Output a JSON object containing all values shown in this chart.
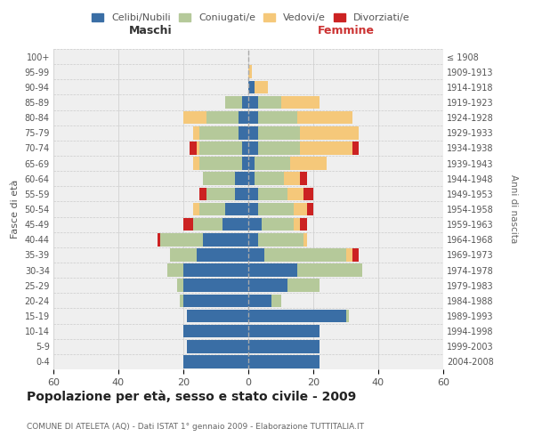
{
  "age_groups": [
    "0-4",
    "5-9",
    "10-14",
    "15-19",
    "20-24",
    "25-29",
    "30-34",
    "35-39",
    "40-44",
    "45-49",
    "50-54",
    "55-59",
    "60-64",
    "65-69",
    "70-74",
    "75-79",
    "80-84",
    "85-89",
    "90-94",
    "95-99",
    "100+"
  ],
  "birth_years": [
    "2004-2008",
    "1999-2003",
    "1994-1998",
    "1989-1993",
    "1984-1988",
    "1979-1983",
    "1974-1978",
    "1969-1973",
    "1964-1968",
    "1959-1963",
    "1954-1958",
    "1949-1953",
    "1944-1948",
    "1939-1943",
    "1934-1938",
    "1929-1933",
    "1924-1928",
    "1919-1923",
    "1914-1918",
    "1909-1913",
    "≤ 1908"
  ],
  "colors": {
    "celibi": "#3a6ea5",
    "coniugati": "#b5c99a",
    "vedovi": "#f5c87a",
    "divorziati": "#cc2222"
  },
  "males": {
    "celibi": [
      20,
      19,
      20,
      19,
      20,
      20,
      20,
      16,
      14,
      8,
      7,
      4,
      4,
      2,
      2,
      3,
      3,
      2,
      0,
      0,
      0
    ],
    "coniugati": [
      0,
      0,
      0,
      0,
      1,
      2,
      5,
      8,
      13,
      9,
      8,
      9,
      10,
      13,
      13,
      12,
      10,
      5,
      0,
      0,
      0
    ],
    "vedovi": [
      0,
      0,
      0,
      0,
      0,
      0,
      0,
      0,
      0,
      0,
      2,
      0,
      0,
      2,
      1,
      2,
      7,
      0,
      0,
      0,
      0
    ],
    "divorziati": [
      0,
      0,
      0,
      0,
      0,
      0,
      0,
      0,
      1,
      3,
      0,
      2,
      0,
      0,
      2,
      0,
      0,
      0,
      0,
      0,
      0
    ]
  },
  "females": {
    "nubili": [
      22,
      22,
      22,
      30,
      7,
      12,
      15,
      5,
      3,
      4,
      3,
      3,
      2,
      2,
      3,
      3,
      3,
      3,
      2,
      0,
      0
    ],
    "coniugate": [
      0,
      0,
      0,
      1,
      3,
      10,
      20,
      25,
      14,
      10,
      11,
      9,
      9,
      11,
      13,
      13,
      12,
      7,
      0,
      0,
      0
    ],
    "vedove": [
      0,
      0,
      0,
      0,
      0,
      0,
      0,
      2,
      1,
      2,
      4,
      5,
      5,
      11,
      16,
      18,
      17,
      12,
      4,
      1,
      0
    ],
    "divorziate": [
      0,
      0,
      0,
      0,
      0,
      0,
      0,
      2,
      0,
      2,
      2,
      3,
      2,
      0,
      2,
      0,
      0,
      0,
      0,
      0,
      0
    ]
  },
  "xlim": 60,
  "title": "Popolazione per età, sesso e stato civile - 2009",
  "subtitle": "COMUNE DI ATELETA (AQ) - Dati ISTAT 1° gennaio 2009 - Elaborazione TUTTITALIA.IT",
  "ylabel_left": "Fasce di età",
  "ylabel_right": "Anni di nascita",
  "xlabel_left": "Maschi",
  "xlabel_right": "Femmine",
  "legend_labels": [
    "Celibi/Nubili",
    "Coniugati/e",
    "Vedovi/e",
    "Divorziati/e"
  ],
  "bg_color": "#efefef",
  "grid_color": "#cccccc",
  "maschi_color": "#333333",
  "femmine_color": "#cc3333"
}
